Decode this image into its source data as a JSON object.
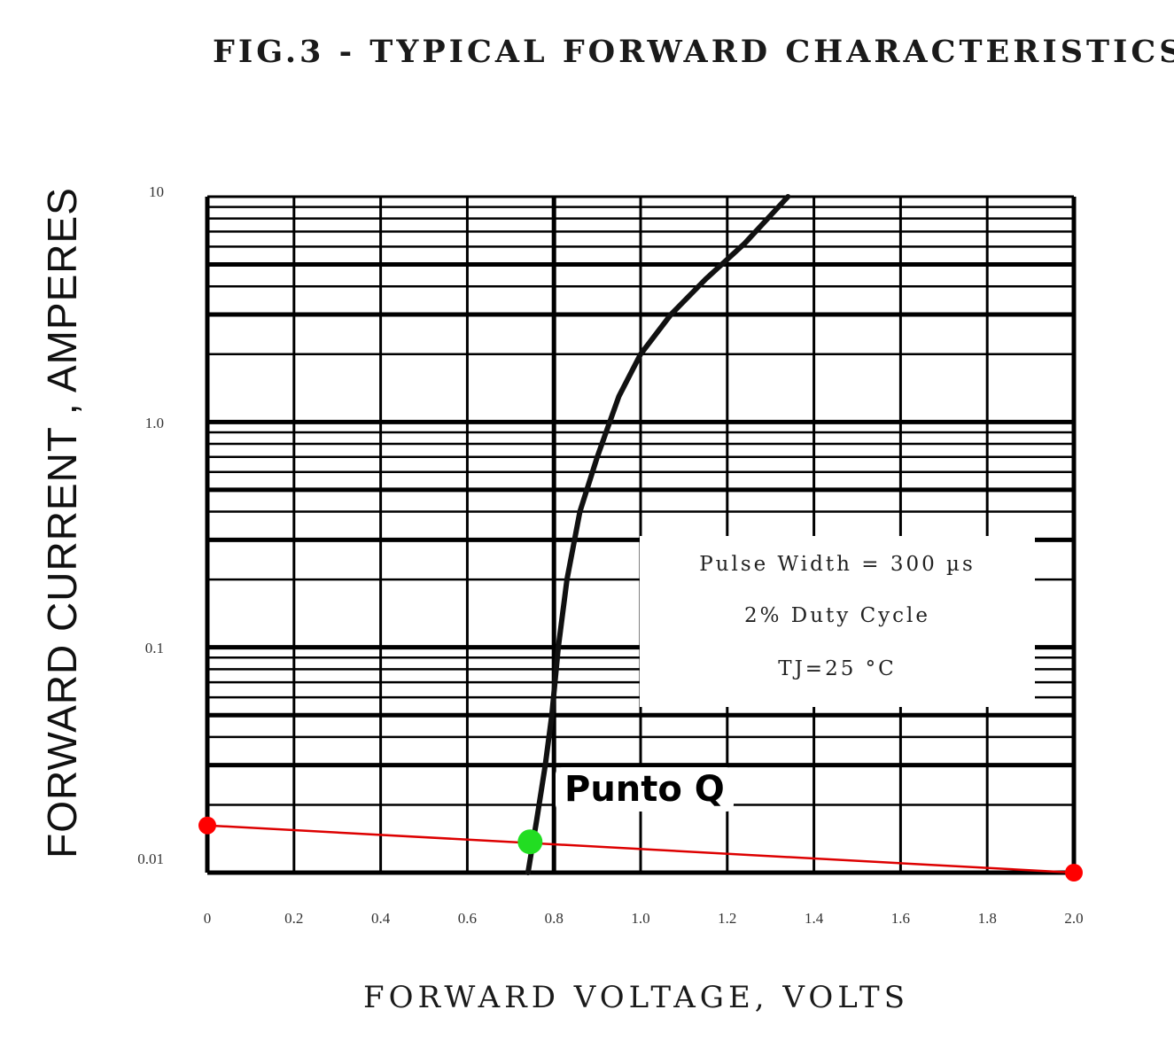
{
  "chart_data": {
    "type": "line",
    "title": "FIG.3 - TYPICAL FORWARD CHARACTERISTICS",
    "xlabel": "FORWARD VOLTAGE, VOLTS",
    "ylabel": "FORWARD CURRENT , AMPERES",
    "x_scale": "linear",
    "y_scale": "log",
    "xlim": [
      0,
      2.0
    ],
    "ylim": [
      0.01,
      10
    ],
    "x_ticks": [
      "0",
      "0.2",
      "0.4",
      "0.6",
      "0.8",
      "1.0",
      "1.2",
      "1.4",
      "1.6",
      "1.8",
      "2.0"
    ],
    "y_ticks": [
      "10",
      "1.0",
      "0.1",
      "0.01"
    ],
    "grid": true,
    "series": [
      {
        "color": "#111111",
        "x": [
          0.74,
          0.76,
          0.78,
          0.795,
          0.81,
          0.83,
          0.86,
          0.9,
          0.95,
          1.0,
          1.07,
          1.15,
          1.24,
          1.34
        ],
        "y": [
          0.01,
          0.017,
          0.03,
          0.05,
          0.1,
          0.2,
          0.4,
          0.7,
          1.3,
          2.0,
          3.0,
          4.3,
          6.2,
          10
        ]
      },
      {
        "color": "#dd0000",
        "x": [
          0,
          2.0
        ],
        "y": [
          0.0162,
          0.01
        ]
      }
    ],
    "points": [
      {
        "x": 0,
        "y": 0.0162,
        "color": "#ff0000"
      },
      {
        "x": 2.0,
        "y": 0.01,
        "color": "#ff0000"
      },
      {
        "x": 0.745,
        "y": 0.0137,
        "color": "#22dd22",
        "label": "Punto Q"
      }
    ],
    "annotation": [
      "Pulse Width = 300 µs",
      "2% Duty Cycle",
      "TJ=25 °C"
    ]
  }
}
